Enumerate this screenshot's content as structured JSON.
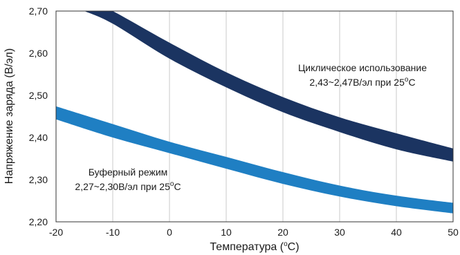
{
  "chart_data": {
    "type": "area",
    "xlabel": "Температура",
    "xlabel_unit_prefix": "(",
    "xlabel_unit_sup": "o",
    "xlabel_unit_suffix": "C)",
    "ylabel": "Напряжение заряда (В/эл)",
    "xlim": [
      -20,
      50
    ],
    "ylim": [
      2.2,
      2.7
    ],
    "x_ticks": [
      -20,
      -10,
      0,
      10,
      20,
      30,
      40,
      50
    ],
    "x_tick_labels": [
      "-20",
      "-10",
      "0",
      "10",
      "20",
      "30",
      "40",
      "50"
    ],
    "y_ticks": [
      2.2,
      2.3,
      2.4,
      2.5,
      2.6,
      2.7
    ],
    "y_tick_labels": [
      "2,20",
      "2,30",
      "2,40",
      "2,50",
      "2,60",
      "2,70"
    ],
    "grid": "vertical",
    "series": [
      {
        "name": "Циклическое использование",
        "color": "#1b3461",
        "x": [
          -15,
          -10,
          0,
          10,
          20,
          30,
          40,
          50
        ],
        "lower": [
          2.7,
          2.67,
          2.587,
          2.519,
          2.46,
          2.413,
          2.372,
          2.343
        ],
        "upper": [
          2.73,
          2.7,
          2.625,
          2.555,
          2.496,
          2.448,
          2.41,
          2.374
        ]
      },
      {
        "name": "Буферный режим",
        "color": "#1f7fc3",
        "x": [
          -20,
          -10,
          0,
          10,
          20,
          30,
          40,
          50
        ],
        "lower": [
          2.443,
          2.4,
          2.363,
          2.326,
          2.29,
          2.26,
          2.237,
          2.22
        ],
        "upper": [
          2.474,
          2.432,
          2.39,
          2.354,
          2.318,
          2.286,
          2.262,
          2.245
        ]
      }
    ],
    "annotations": [
      {
        "line1": "Циклическое использование",
        "line2_prefix": "2,43~2,47В/эл при 25",
        "line2_sup": "o",
        "line2_suffix": "C"
      },
      {
        "line1": "Буферный режим",
        "line2_prefix": "2,27~2,30В/эл при 25",
        "line2_sup": "o",
        "line2_suffix": "C"
      }
    ]
  }
}
